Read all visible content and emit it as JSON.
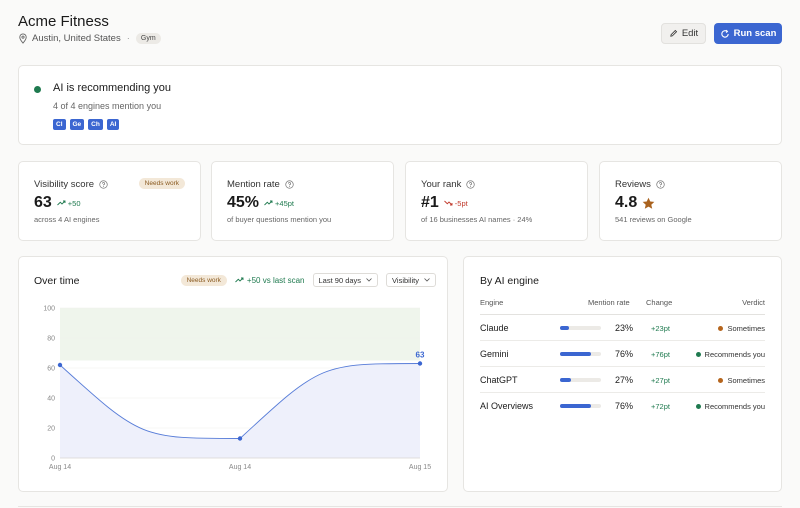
{
  "header": {
    "business_name": "Acme Fitness",
    "location": "Austin, United States",
    "separator": "·",
    "category": "Gym",
    "edit_label": "Edit",
    "scan_label": "Run scan"
  },
  "status": {
    "title": "AI is recommending you",
    "subtitle": "4 of 4 engines mention you",
    "engines": [
      "Cl",
      "Ge",
      "Ch",
      "AI"
    ],
    "dot_color": "#1f7a4f"
  },
  "metrics": [
    {
      "label": "Visibility score",
      "value": "63",
      "change": "+50",
      "direction": "up",
      "foot": "across 4 AI engines",
      "badge": "Needs work"
    },
    {
      "label": "Mention rate",
      "value": "45%",
      "change": "+45pt",
      "direction": "up",
      "foot": "of buyer questions mention you"
    },
    {
      "label": "Your rank",
      "value": "#1",
      "change": "-5pt",
      "direction": "down",
      "foot": "of 16 businesses AI names · 24%"
    },
    {
      "label": "Reviews",
      "value": "4.8",
      "star": true,
      "foot": "541 reviews on Google"
    }
  ],
  "over_time": {
    "title": "Over time",
    "badge": "Needs work",
    "change": "+50 vs last scan",
    "range_select": "Last 90 days",
    "metric_select": "Visibility",
    "chart_data": {
      "type": "area",
      "x": [
        "Aug 14",
        "Aug 14",
        "Aug 15"
      ],
      "values": [
        62,
        13,
        63
      ],
      "end_label": "63",
      "y_ticks": [
        "0",
        "20",
        "40",
        "60",
        "80",
        "100"
      ],
      "ylim": [
        0,
        100
      ],
      "target_band": [
        65,
        100
      ],
      "line_color": "#3b66d1",
      "fill_color": "#eef0fb",
      "band_color": "#eff5ec"
    }
  },
  "by_engine": {
    "title": "By AI engine",
    "columns": {
      "engine": "Engine",
      "rate": "Mention rate",
      "change": "Change",
      "verdict": "Verdict"
    },
    "rows": [
      {
        "name": "Claude",
        "rate": 23,
        "rate_label": "23%",
        "change": "+23pt",
        "verdict": "Sometimes",
        "verdict_color": "#b5651d"
      },
      {
        "name": "Gemini",
        "rate": 76,
        "rate_label": "76%",
        "change": "+76pt",
        "verdict": "Recommends you",
        "verdict_color": "#1f7a4f"
      },
      {
        "name": "ChatGPT",
        "rate": 27,
        "rate_label": "27%",
        "change": "+27pt",
        "verdict": "Sometimes",
        "verdict_color": "#b5651d"
      },
      {
        "name": "AI Overviews",
        "rate": 76,
        "rate_label": "76%",
        "change": "+72pt",
        "verdict": "Recommends you",
        "verdict_color": "#1f7a4f"
      }
    ]
  },
  "colors": {
    "accent": "#3b66d1",
    "positive": "#1f7a4f",
    "negative": "#c0392b",
    "warning": "#b5651d"
  }
}
